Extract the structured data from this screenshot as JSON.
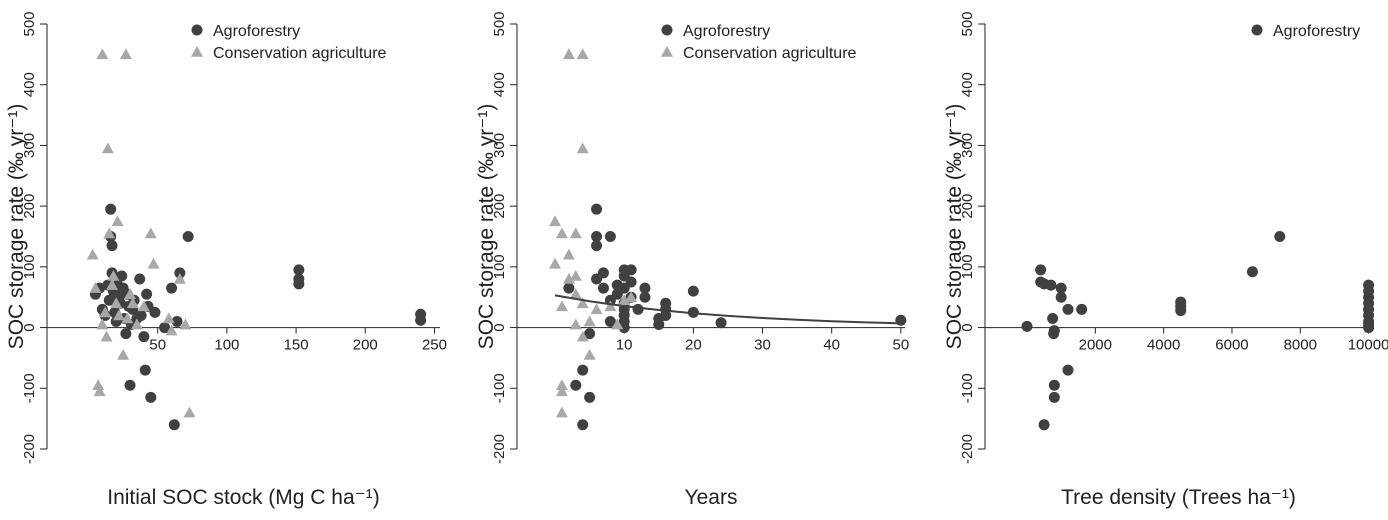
{
  "chart_data": [
    {
      "type": "scatter",
      "x_label": "Initial SOC stock (Mg C ha⁻¹)",
      "y_label": "SOC storage rate (‰ yr⁻¹)",
      "xlim": [
        -30,
        254
      ],
      "ylim": [
        -200,
        500
      ],
      "xticks": [
        50,
        100,
        150,
        200,
        250
      ],
      "yticks": [
        -200,
        -100,
        0,
        100,
        200,
        300,
        400,
        500
      ],
      "legend": "top",
      "series": [
        {
          "name": "Agroforestry",
          "color": "#404040",
          "marker": "circle",
          "x": [
            5,
            8,
            10,
            12,
            14,
            15,
            16,
            16,
            17,
            17,
            18,
            19,
            20,
            21,
            22,
            23,
            24,
            25,
            26,
            27,
            28,
            29,
            30,
            31,
            32,
            33,
            35,
            37,
            38,
            40,
            41,
            42,
            43,
            45,
            48,
            55,
            60,
            62,
            64,
            66,
            72,
            152,
            152,
            152,
            240,
            240
          ],
          "values": [
            55,
            65,
            30,
            20,
            70,
            45,
            195,
            150,
            135,
            90,
            60,
            25,
            10,
            70,
            50,
            40,
            85,
            65,
            15,
            -10,
            55,
            35,
            -95,
            5,
            30,
            45,
            15,
            80,
            20,
            -15,
            -70,
            55,
            35,
            -115,
            25,
            0,
            65,
            -160,
            10,
            90,
            150,
            95,
            80,
            72,
            22,
            12
          ]
        },
        {
          "name": "Conservation agriculture",
          "color": "#a8a8a8",
          "marker": "triangle",
          "x": [
            3,
            5,
            7,
            8,
            10,
            10,
            12,
            13,
            14,
            15,
            17,
            18,
            20,
            21,
            22,
            25,
            27,
            28,
            30,
            32,
            35,
            40,
            45,
            47,
            58,
            60,
            66,
            70,
            73
          ],
          "values": [
            120,
            65,
            -95,
            -105,
            450,
            5,
            25,
            -15,
            295,
            155,
            70,
            85,
            40,
            175,
            20,
            -45,
            450,
            15,
            55,
            40,
            5,
            35,
            155,
            105,
            15,
            -5,
            80,
            5,
            -140
          ]
        }
      ]
    },
    {
      "type": "scatter",
      "x_label": "Years",
      "y_label": "SOC storage rate (‰ yr⁻¹)",
      "xlim": [
        -5.5,
        50.6
      ],
      "ylim": [
        -200,
        500
      ],
      "xticks": [
        10,
        20,
        30,
        40,
        50
      ],
      "yticks": [
        -200,
        -100,
        0,
        100,
        200,
        300,
        400,
        500
      ],
      "legend": "top",
      "series": [
        {
          "name": "Agroforestry",
          "color": "#404040",
          "marker": "circle",
          "x": [
            2,
            3,
            4,
            4,
            5,
            5,
            6,
            6,
            6,
            6,
            7,
            7,
            8,
            8,
            8,
            9,
            9,
            10,
            10,
            10,
            10,
            10,
            10,
            10,
            10,
            11,
            11,
            11,
            12,
            13,
            13,
            15,
            15,
            16,
            16,
            16,
            20,
            20,
            24,
            50
          ],
          "values": [
            65,
            -95,
            -70,
            -160,
            -10,
            -115,
            80,
            135,
            150,
            195,
            90,
            65,
            45,
            150,
            10,
            70,
            55,
            95,
            85,
            65,
            40,
            30,
            20,
            10,
            0,
            95,
            75,
            50,
            30,
            65,
            50,
            5,
            15,
            40,
            30,
            20,
            60,
            25,
            8,
            12
          ]
        },
        {
          "name": "Conservation agriculture",
          "color": "#a8a8a8",
          "marker": "triangle",
          "x": [
            0,
            0,
            1,
            1,
            1,
            1,
            1,
            2,
            2,
            2,
            3,
            3,
            3,
            3,
            4,
            4,
            4,
            4,
            5,
            5,
            6,
            8,
            9,
            10,
            11
          ],
          "values": [
            175,
            105,
            155,
            -95,
            -105,
            -140,
            35,
            450,
            120,
            80,
            155,
            85,
            55,
            5,
            450,
            40,
            295,
            -15,
            -45,
            10,
            30,
            35,
            5,
            45,
            50
          ]
        },
        {
          "color": "#404040",
          "marker": "line",
          "x": [
            0,
            5,
            10,
            15,
            20,
            25,
            30,
            35,
            40,
            45,
            50
          ],
          "values": [
            53,
            43.3,
            35.4,
            28.9,
            23.6,
            19.3,
            15.7,
            12.9,
            10.5,
            8.6,
            7
          ]
        }
      ]
    },
    {
      "type": "scatter",
      "x_label": "Tree density (Trees ha⁻¹)",
      "y_label": "SOC storage rate (‰ yr⁻¹)",
      "xlim": [
        -1230,
        10100
      ],
      "ylim": [
        -200,
        500
      ],
      "xticks": [
        2000,
        4000,
        6000,
        8000,
        10000
      ],
      "yticks": [
        -200,
        -100,
        0,
        100,
        200,
        300,
        400,
        500
      ],
      "legend": "top-right",
      "series": [
        {
          "name": "Agroforestry",
          "color": "#404040",
          "marker": "circle",
          "x": [
            0,
            400,
            400,
            500,
            500,
            700,
            750,
            780,
            800,
            800,
            800,
            1000,
            1000,
            1200,
            1200,
            1600,
            4500,
            4500,
            4500,
            6600,
            7400,
            10000,
            10000,
            10000,
            10000,
            10000,
            10000,
            10000,
            10000,
            10000
          ],
          "values": [
            2,
            95,
            75,
            72,
            -160,
            70,
            15,
            -10,
            -5,
            -95,
            -115,
            65,
            50,
            30,
            -70,
            30,
            42,
            35,
            28,
            92,
            150,
            70,
            60,
            50,
            40,
            30,
            20,
            10,
            5,
            0
          ]
        }
      ]
    }
  ]
}
